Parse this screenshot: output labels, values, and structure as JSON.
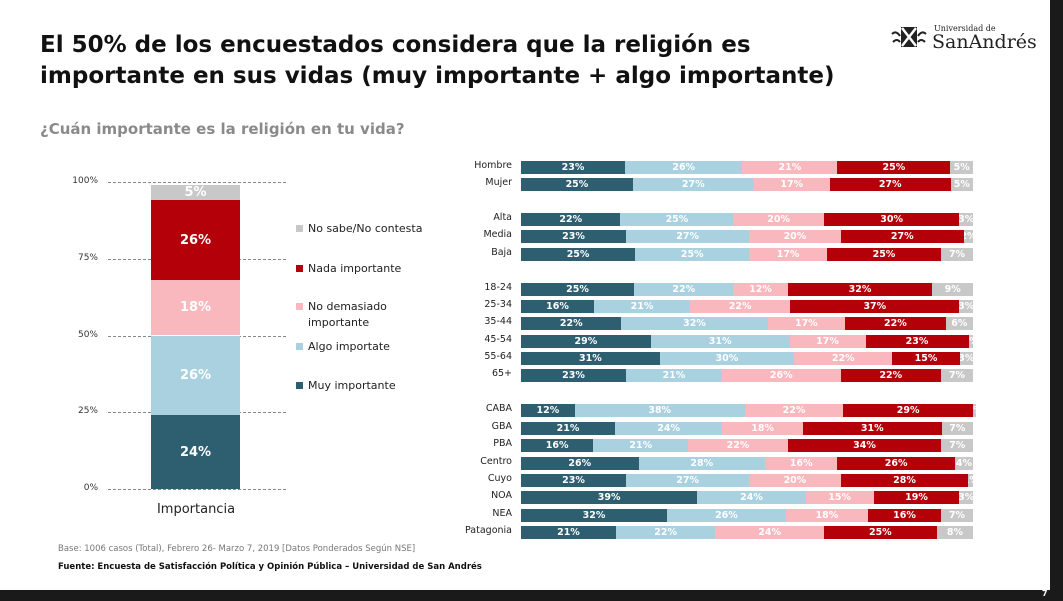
{
  "title": "El 50% de los encuestados considera que la religión es importante en sus  vidas (muy importante + algo importante)",
  "subtitle": "¿Cuán importante es la religión en tu vida?",
  "logo": {
    "small": "Universidad de",
    "big": "SanAndrés"
  },
  "footer": {
    "base": "Base: 1006 casos (Total), Febrero 26- Marzo 7,  2019 [Datos Ponderados Según NSE]",
    "source": "Fuente: Encuesta de Satisfacción Política y Opinión Pública – Universidad de San Andrés"
  },
  "page_number": "7",
  "colors": {
    "muy": "#2e5f70",
    "algo": "#a9d1e0",
    "nodem": "#f9b8be",
    "nada": "#b30009",
    "ns": "#c8c8c8"
  },
  "chart_data": [
    {
      "type": "bar",
      "stacked": true,
      "categories": [
        "Importancia"
      ],
      "yticks": [
        "0%",
        "25%",
        "50%",
        "75%",
        "100%"
      ],
      "ylim": [
        0,
        100
      ],
      "series": [
        {
          "name": "Muy importante",
          "key": "muy",
          "values": [
            24
          ]
        },
        {
          "name": "Algo importate",
          "key": "algo",
          "values": [
            26
          ]
        },
        {
          "name": "No demasiado importante",
          "key": "nodem",
          "values": [
            18
          ]
        },
        {
          "name": "Nada importante",
          "key": "nada",
          "values": [
            26
          ]
        },
        {
          "name": "No sabe/No contesta",
          "key": "ns",
          "values": [
            5
          ]
        }
      ],
      "legend": [
        "No sabe/No contesta",
        "Nada importante",
        "No demasiado importante",
        "Algo importate",
        "Muy importante"
      ],
      "legend_position": "right"
    },
    {
      "type": "bar",
      "orientation": "horizontal",
      "stacked": true,
      "series_order": [
        "muy",
        "algo",
        "nodem",
        "nada",
        "ns"
      ],
      "rows": [
        {
          "label": "Hombre",
          "values": [
            23,
            26,
            21,
            25,
            5
          ]
        },
        {
          "label": "Mujer",
          "values": [
            25,
            27,
            17,
            27,
            5
          ]
        },
        {
          "label": "Alta",
          "values": [
            22,
            25,
            20,
            30,
            3
          ]
        },
        {
          "label": "Media",
          "values": [
            23,
            27,
            20,
            27,
            2
          ]
        },
        {
          "label": "Baja",
          "values": [
            25,
            25,
            17,
            25,
            7
          ]
        },
        {
          "label": "18-24",
          "values": [
            25,
            22,
            12,
            32,
            9
          ]
        },
        {
          "label": "25-34",
          "values": [
            16,
            21,
            22,
            37,
            3
          ]
        },
        {
          "label": "35-44",
          "values": [
            22,
            32,
            17,
            22,
            6
          ]
        },
        {
          "label": "45-54",
          "values": [
            29,
            31,
            17,
            23,
            1
          ]
        },
        {
          "label": "55-64",
          "values": [
            31,
            30,
            22,
            15,
            3
          ]
        },
        {
          "label": "65+",
          "values": [
            23,
            21,
            26,
            22,
            7
          ]
        },
        {
          "label": "CABA",
          "values": [
            12,
            38,
            22,
            29,
            0
          ]
        },
        {
          "label": "GBA",
          "values": [
            21,
            24,
            18,
            31,
            7
          ]
        },
        {
          "label": "PBA",
          "values": [
            16,
            21,
            22,
            34,
            7
          ]
        },
        {
          "label": "Centro",
          "values": [
            26,
            28,
            16,
            26,
            4
          ]
        },
        {
          "label": "Cuyo",
          "values": [
            23,
            27,
            20,
            28,
            1
          ]
        },
        {
          "label": "NOA",
          "values": [
            39,
            24,
            15,
            19,
            3
          ]
        },
        {
          "label": "NEA",
          "values": [
            32,
            26,
            18,
            16,
            7
          ]
        },
        {
          "label": "Patagonia",
          "values": [
            21,
            22,
            24,
            25,
            8
          ]
        }
      ]
    }
  ]
}
